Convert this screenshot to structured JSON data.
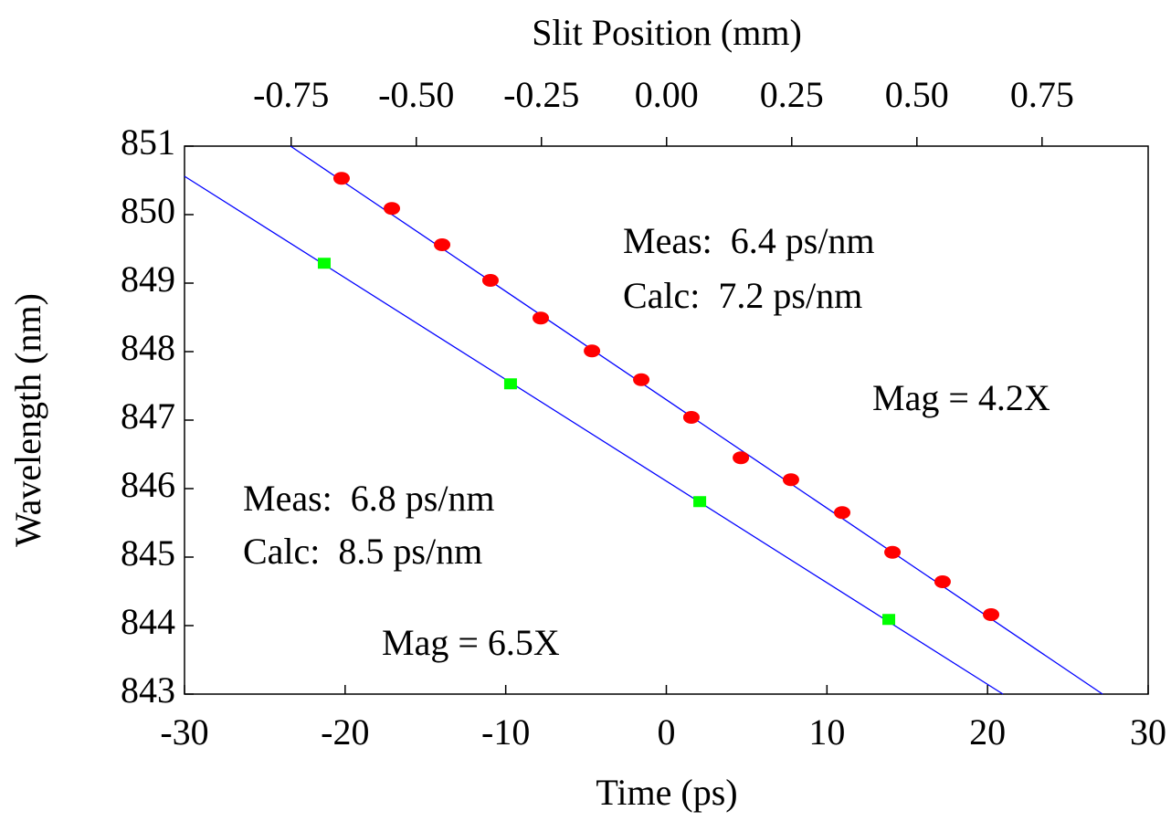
{
  "chart_data": {
    "type": "scatter",
    "xlabel": "Time (ps)",
    "ylabel": "Wavelength (nm)",
    "x2label": "Slit Position (mm)",
    "xlim": [
      -30,
      30
    ],
    "xticks": [
      -30,
      -20,
      -10,
      0,
      10,
      20,
      30
    ],
    "ylim": [
      843,
      851
    ],
    "yticks": [
      843,
      844,
      845,
      846,
      847,
      848,
      849,
      850,
      851
    ],
    "x2lim": [
      -0.963,
      0.962
    ],
    "x2ticks": [
      -0.75,
      {
        "value": -0.5,
        "label": "-0.50"
      },
      -0.25,
      {
        "value": 0,
        "label": "0.00"
      },
      0.25,
      {
        "value": 0.5,
        "label": "0.50"
      },
      0.75
    ],
    "grid": false,
    "series": [
      {
        "color": "#ff0000",
        "marker": "circle",
        "x": [
          -20.22,
          -17.09,
          -13.96,
          -10.95,
          -7.82,
          -4.63,
          -1.56,
          1.56,
          4.64,
          7.76,
          10.95,
          14.08,
          17.2,
          20.22
        ],
        "values": [
          850.53,
          850.09,
          849.56,
          849.04,
          848.49,
          848.01,
          847.59,
          847.04,
          846.45,
          846.13,
          845.65,
          845.07,
          844.64,
          844.16
        ]
      },
      {
        "color": "#00ff00",
        "marker": "square",
        "x": [
          -21.3,
          -9.7,
          2.08,
          13.85
        ],
        "values": [
          849.29,
          847.53,
          845.81,
          844.09
        ]
      }
    ],
    "lines": [
      {
        "color": "#0000ff",
        "x": [
          -23.4,
          27.16
        ],
        "values": [
          851,
          843
        ]
      },
      {
        "color": "#0000ff",
        "x": [
          -30,
          20.96
        ],
        "values": [
          850.56,
          843
        ]
      }
    ],
    "annotations": [
      "Meas:  6.4 ps/nm",
      "Calc:  7.2 ps/nm",
      "Mag = 4.2X",
      "Meas:  6.8 ps/nm",
      "Calc:  8.5 ps/nm",
      "Mag = 6.5X"
    ]
  }
}
